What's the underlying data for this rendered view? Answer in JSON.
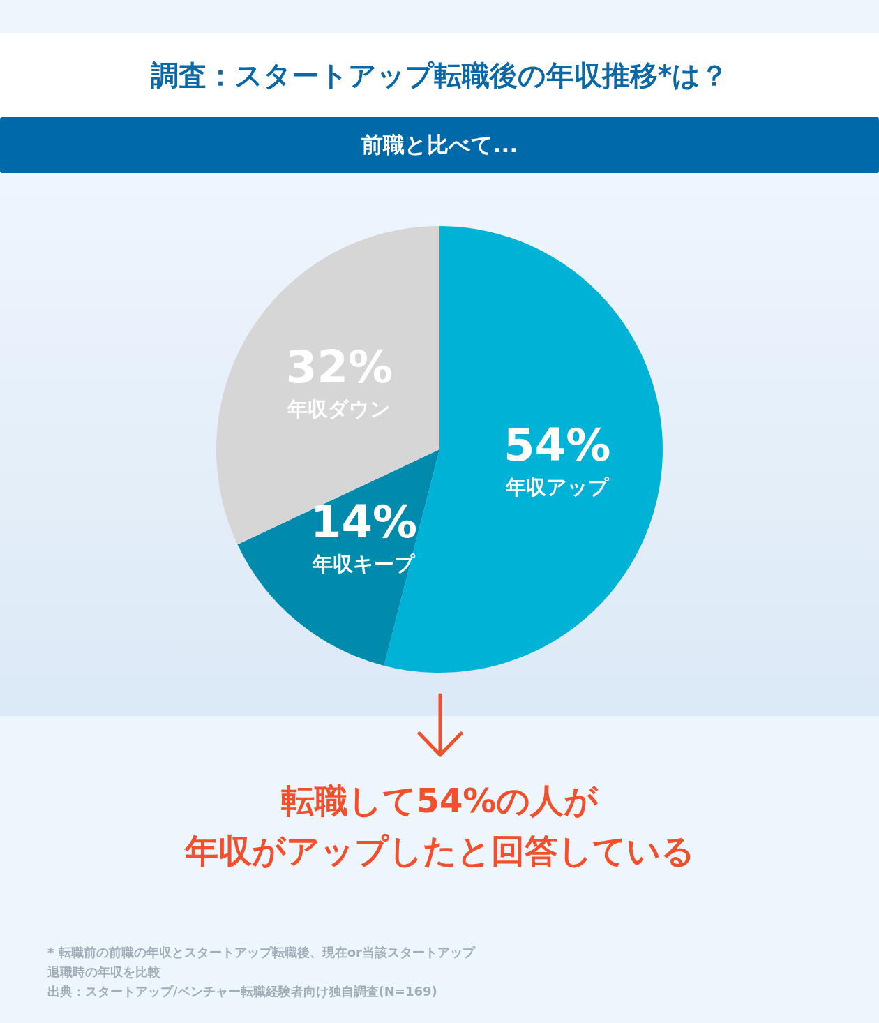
{
  "chart_data": {
    "type": "pie",
    "title": "調査：スタートアップ転職後の年収推移*は？",
    "subtitle": "前職と比べて...",
    "categories": [
      "年収アップ",
      "年収キープ",
      "年収ダウン"
    ],
    "values": [
      54,
      14,
      32
    ],
    "colors": [
      "#00b3d6",
      "#008aab",
      "#d6d6d6"
    ],
    "value_labels": [
      "54%",
      "14%",
      "32%"
    ],
    "annotations": [
      "転職して54%の人が",
      "年収がアップしたと回答している",
      "* 転職前の前職の年収とスタートアップ転職後、現在or当該スタートアップ",
      "退職時の年収を比較",
      "出典：スタートアップ/ベンチャー転職経験者向け独自調査(N=169)"
    ]
  }
}
